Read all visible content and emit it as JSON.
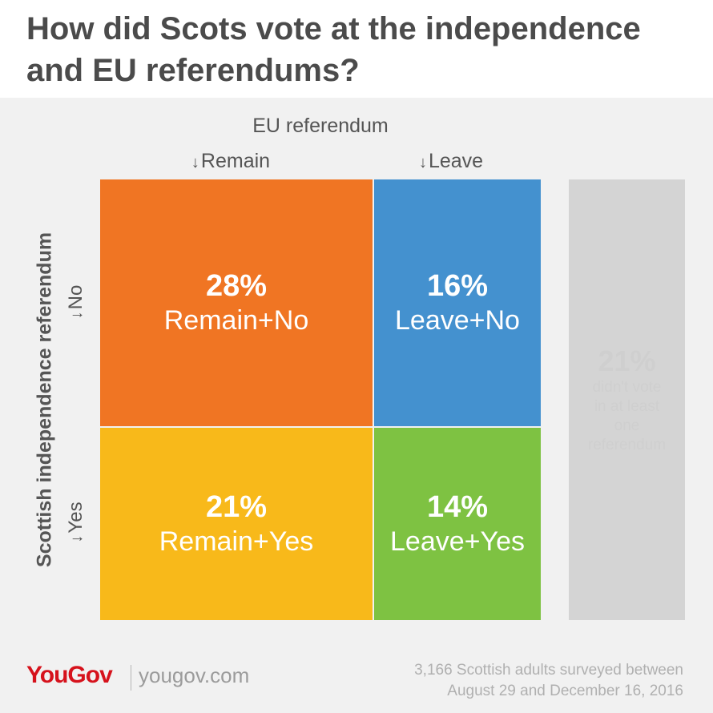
{
  "title": "How did Scots vote at the independence and EU referendums?",
  "chart_data": {
    "type": "table",
    "column_axis_label": "EU referendum",
    "row_axis_label": "Scottish independence referendum",
    "columns": [
      "Remain",
      "Leave"
    ],
    "rows": [
      "No",
      "Yes"
    ],
    "values": [
      [
        28,
        16
      ],
      [
        21,
        14
      ]
    ],
    "cells": [
      {
        "row": "No",
        "column": "Remain",
        "value": 28,
        "pct_text": "28%",
        "label": "Remain+No",
        "color": "#f07523"
      },
      {
        "row": "No",
        "column": "Leave",
        "value": 16,
        "pct_text": "16%",
        "label": "Leave+No",
        "color": "#4491cf"
      },
      {
        "row": "Yes",
        "column": "Remain",
        "value": 21,
        "pct_text": "21%",
        "label": "Remain+Yes",
        "color": "#f8b91a"
      },
      {
        "row": "Yes",
        "column": "Leave",
        "value": 14,
        "pct_text": "14%",
        "label": "Leave+Yes",
        "color": "#7ec242"
      }
    ],
    "other": {
      "value": 21,
      "pct_text": "21%",
      "label_lines": [
        "didn't vote",
        "in at least",
        "one",
        "referendum"
      ],
      "color": "#d4d4d4"
    }
  },
  "footer": {
    "brand": "YouGov",
    "site": "yougov.com",
    "source_lines": [
      "3,166 Scottish adults surveyed between",
      "August 29 and December 16, 2016"
    ]
  }
}
